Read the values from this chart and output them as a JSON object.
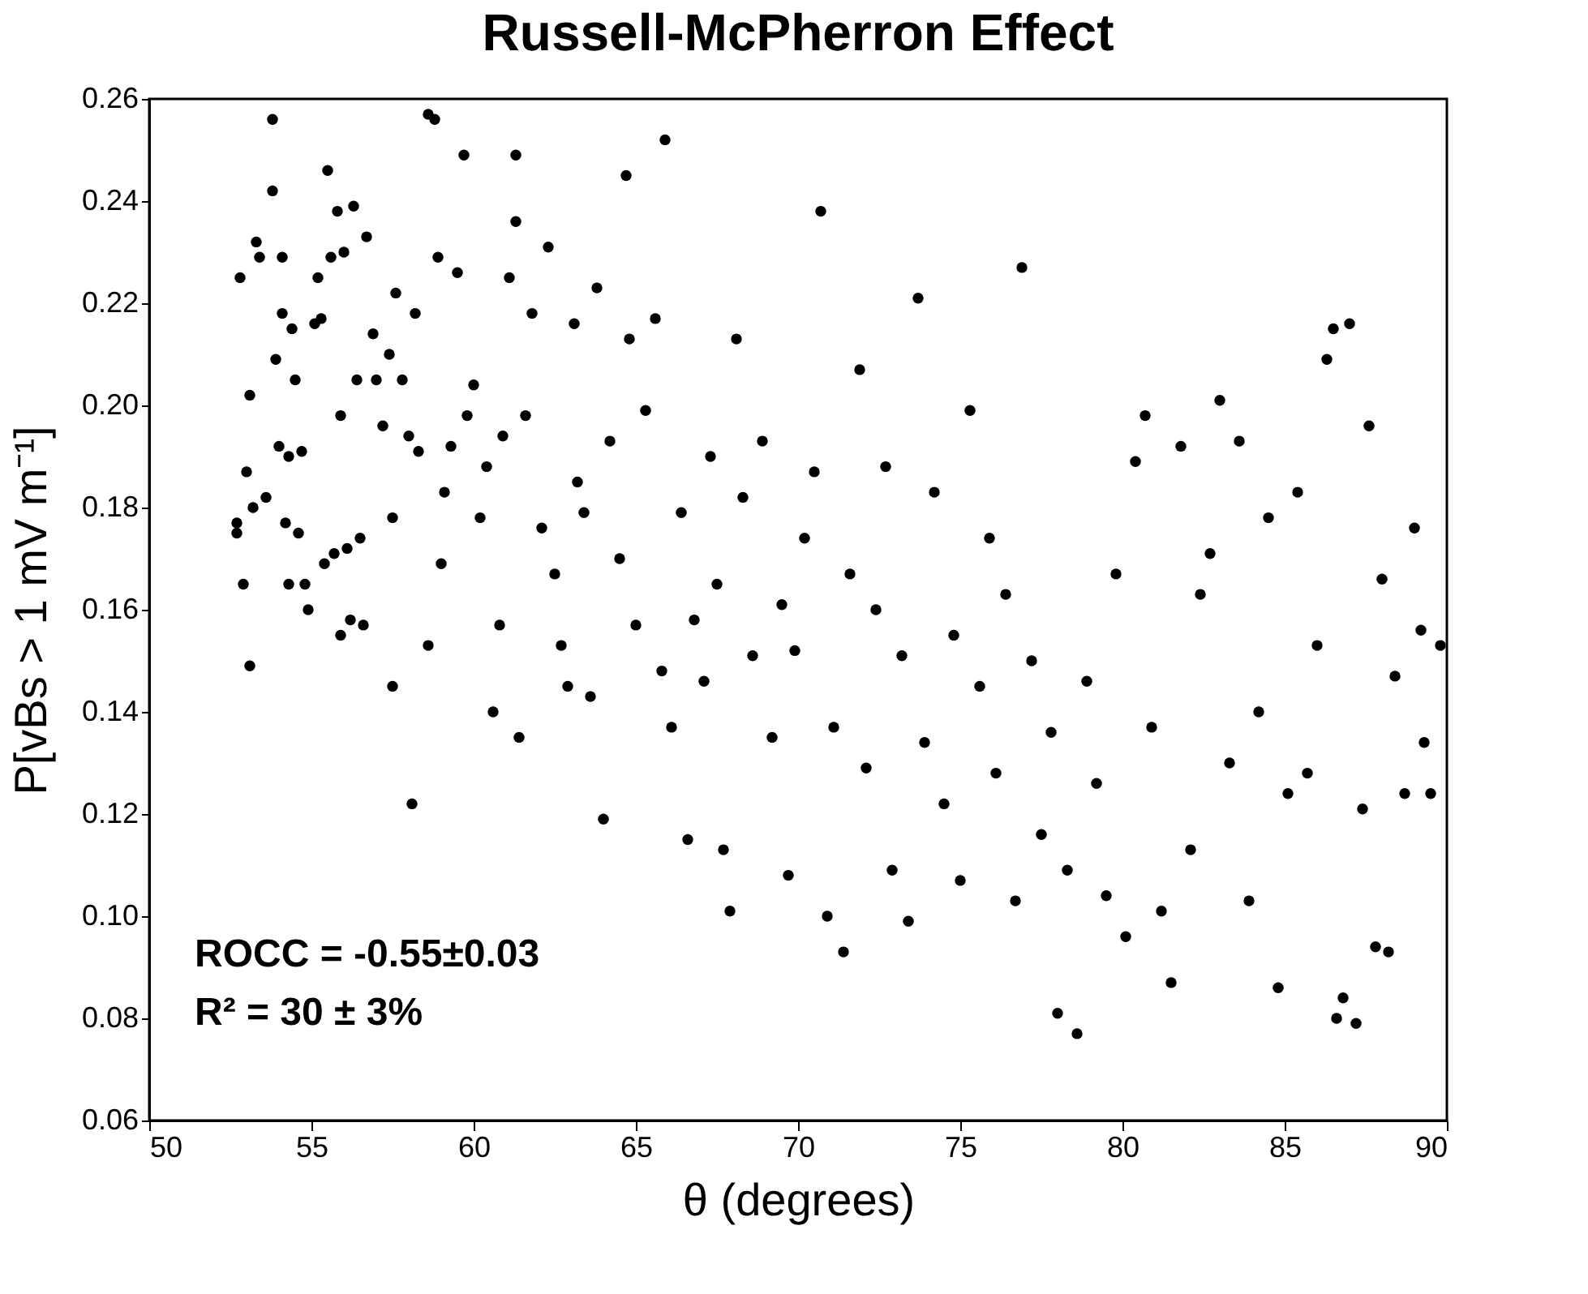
{
  "chart_data": {
    "type": "scatter",
    "title": "Russell-McPherron Effect",
    "xlabel": "θ  (degrees)",
    "ylabel": "P[vBs > 1 mV m⁻¹]",
    "xlim": [
      50,
      90
    ],
    "xticks": [
      50,
      55,
      60,
      65,
      70,
      75,
      80,
      85,
      90
    ],
    "ylim": [
      0.06,
      0.26
    ],
    "yticks": [
      0.06,
      0.08,
      {
        "value": 0.1,
        "label": "0.10"
      },
      0.12,
      0.14,
      0.16,
      0.18,
      {
        "value": 0.2,
        "label": "0.20"
      },
      0.22,
      0.24,
      0.26
    ],
    "grid": false,
    "marker": "circle",
    "annotations": [
      "ROCC = -0.55±0.03",
      "R² = 30 ± 3%"
    ],
    "series": [
      {
        "color": "#000000",
        "x": [
          52.7,
          52.7,
          52.8,
          52.9,
          53.0,
          53.1,
          53.1,
          53.2,
          53.3,
          53.4,
          53.6,
          53.8,
          53.8,
          53.9,
          54.0,
          54.1,
          54.1,
          54.2,
          54.3,
          54.3,
          54.4,
          54.5,
          54.6,
          54.7,
          54.8,
          54.9,
          55.1,
          55.2,
          55.3,
          55.4,
          55.5,
          55.6,
          55.7,
          55.8,
          55.9,
          55.9,
          56.0,
          56.1,
          56.2,
          56.3,
          56.4,
          56.5,
          56.6,
          56.7,
          56.9,
          57.0,
          57.2,
          57.4,
          57.5,
          57.5,
          57.6,
          57.8,
          58.0,
          58.1,
          58.2,
          58.3,
          58.6,
          58.6,
          58.8,
          58.9,
          59.0,
          59.1,
          59.3,
          59.5,
          59.7,
          59.8,
          60.0,
          60.2,
          60.4,
          60.6,
          60.8,
          60.9,
          61.1,
          61.3,
          61.3,
          61.4,
          61.6,
          61.8,
          62.1,
          62.3,
          62.5,
          62.7,
          62.9,
          63.1,
          63.2,
          63.4,
          63.6,
          63.8,
          64.0,
          64.2,
          64.5,
          64.7,
          64.8,
          65.0,
          65.3,
          65.6,
          65.8,
          65.9,
          66.1,
          66.4,
          66.6,
          66.8,
          67.1,
          67.3,
          67.5,
          67.7,
          67.9,
          68.1,
          68.3,
          68.6,
          68.9,
          69.2,
          69.5,
          69.7,
          69.9,
          70.2,
          70.5,
          70.7,
          70.9,
          71.1,
          71.4,
          71.6,
          71.9,
          72.1,
          72.4,
          72.7,
          72.9,
          73.2,
          73.4,
          73.7,
          73.9,
          74.2,
          74.5,
          74.8,
          75.0,
          75.3,
          75.6,
          75.9,
          76.1,
          76.4,
          76.7,
          76.9,
          77.2,
          77.5,
          77.8,
          78.0,
          78.3,
          78.6,
          78.9,
          79.2,
          79.5,
          79.8,
          80.1,
          80.4,
          80.7,
          80.9,
          81.2,
          81.5,
          81.8,
          82.1,
          82.4,
          82.7,
          83.0,
          83.3,
          83.6,
          83.9,
          84.2,
          84.5,
          84.8,
          85.1,
          85.4,
          85.7,
          86.0,
          86.3,
          86.5,
          86.6,
          86.8,
          87.0,
          87.2,
          87.4,
          87.6,
          87.8,
          88.0,
          88.2,
          88.4,
          88.7,
          89.0,
          89.2,
          89.5,
          89.8,
          89.3
        ],
        "values": [
          0.177,
          0.175,
          0.225,
          0.165,
          0.187,
          0.149,
          0.202,
          0.18,
          0.232,
          0.229,
          0.182,
          0.256,
          0.242,
          0.209,
          0.192,
          0.229,
          0.218,
          0.177,
          0.165,
          0.19,
          0.215,
          0.205,
          0.175,
          0.191,
          0.165,
          0.16,
          0.216,
          0.225,
          0.217,
          0.169,
          0.246,
          0.229,
          0.171,
          0.238,
          0.198,
          0.155,
          0.23,
          0.172,
          0.158,
          0.239,
          0.205,
          0.174,
          0.157,
          0.233,
          0.214,
          0.205,
          0.196,
          0.21,
          0.178,
          0.145,
          0.222,
          0.205,
          0.194,
          0.122,
          0.218,
          0.191,
          0.257,
          0.153,
          0.256,
          0.229,
          0.169,
          0.183,
          0.192,
          0.226,
          0.249,
          0.198,
          0.204,
          0.178,
          0.188,
          0.14,
          0.157,
          0.194,
          0.225,
          0.249,
          0.236,
          0.135,
          0.198,
          0.218,
          0.176,
          0.231,
          0.167,
          0.153,
          0.145,
          0.216,
          0.185,
          0.179,
          0.143,
          0.223,
          0.119,
          0.193,
          0.17,
          0.245,
          0.213,
          0.157,
          0.199,
          0.217,
          0.148,
          0.252,
          0.137,
          0.179,
          0.115,
          0.158,
          0.146,
          0.19,
          0.165,
          0.113,
          0.101,
          0.213,
          0.182,
          0.151,
          0.193,
          0.135,
          0.161,
          0.108,
          0.152,
          0.174,
          0.187,
          0.238,
          0.1,
          0.137,
          0.093,
          0.167,
          0.207,
          0.129,
          0.16,
          0.188,
          0.109,
          0.151,
          0.099,
          0.221,
          0.134,
          0.183,
          0.122,
          0.155,
          0.107,
          0.199,
          0.145,
          0.174,
          0.128,
          0.163,
          0.103,
          0.227,
          0.15,
          0.116,
          0.136,
          0.081,
          0.109,
          0.077,
          0.146,
          0.126,
          0.104,
          0.167,
          0.096,
          0.189,
          0.198,
          0.137,
          0.101,
          0.087,
          0.192,
          0.113,
          0.163,
          0.171,
          0.201,
          0.13,
          0.193,
          0.103,
          0.14,
          0.178,
          0.086,
          0.124,
          0.183,
          0.128,
          0.153,
          0.209,
          0.215,
          0.08,
          0.084,
          0.216,
          0.079,
          0.121,
          0.196,
          0.094,
          0.166,
          0.093,
          0.147,
          0.124,
          0.176,
          0.156,
          0.124,
          0.153,
          0.134
        ]
      }
    ]
  }
}
